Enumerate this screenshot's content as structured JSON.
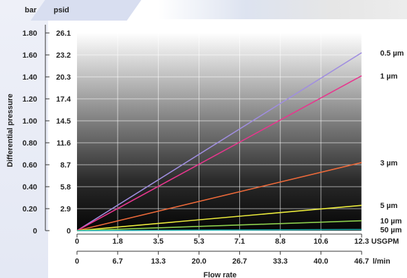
{
  "chart_data": {
    "type": "line",
    "title": "",
    "xlabel": "Flow rate",
    "ylabel": "Differential pressure",
    "y_units": {
      "primary": "bar",
      "secondary": "psid"
    },
    "x_units": {
      "primary": "USGPM",
      "secondary": "l/min"
    },
    "ylim": [
      0,
      1.8
    ],
    "xlim": [
      0,
      12.3
    ],
    "y_ticks_bar": [
      "0",
      "0.20",
      "0.40",
      "0.60",
      "0.80",
      "1.00",
      "1.20",
      "1.40",
      "1.60",
      "1.80"
    ],
    "y_ticks_psid": [
      "0",
      "2.9",
      "5.8",
      "8.7",
      "11.6",
      "14.5",
      "17.4",
      "20.3",
      "23.2",
      "26.1"
    ],
    "x_ticks_usgpm": [
      "0",
      "1.8",
      "3.5",
      "5.3",
      "7.1",
      "8.8",
      "10.6",
      "12.3"
    ],
    "x_ticks_lmin": [
      "0",
      "6.7",
      "13.3",
      "20.0",
      "26.7",
      "33.3",
      "40.0",
      "46.7"
    ],
    "grid": true,
    "series": [
      {
        "name": "0.5 µm",
        "color": "#a08ee0",
        "x": [
          0,
          12.3
        ],
        "y": [
          0,
          1.62
        ]
      },
      {
        "name": "1 µm",
        "color": "#e8368e",
        "x": [
          0,
          12.3
        ],
        "y": [
          0,
          1.41
        ]
      },
      {
        "name": "3 µm",
        "color": "#ee6a3a",
        "x": [
          0,
          12.3
        ],
        "y": [
          0,
          0.62
        ]
      },
      {
        "name": "5 µm",
        "color": "#eeee3c",
        "x": [
          0,
          12.3
        ],
        "y": [
          0,
          0.23
        ]
      },
      {
        "name": "10 µm",
        "color": "#8ed24e",
        "x": [
          0,
          12.3
        ],
        "y": [
          0,
          0.09
        ]
      },
      {
        "name": "50 µm",
        "color": "#26b4b4",
        "x": [
          0,
          12.3
        ],
        "y": [
          0,
          0.01
        ]
      }
    ]
  }
}
